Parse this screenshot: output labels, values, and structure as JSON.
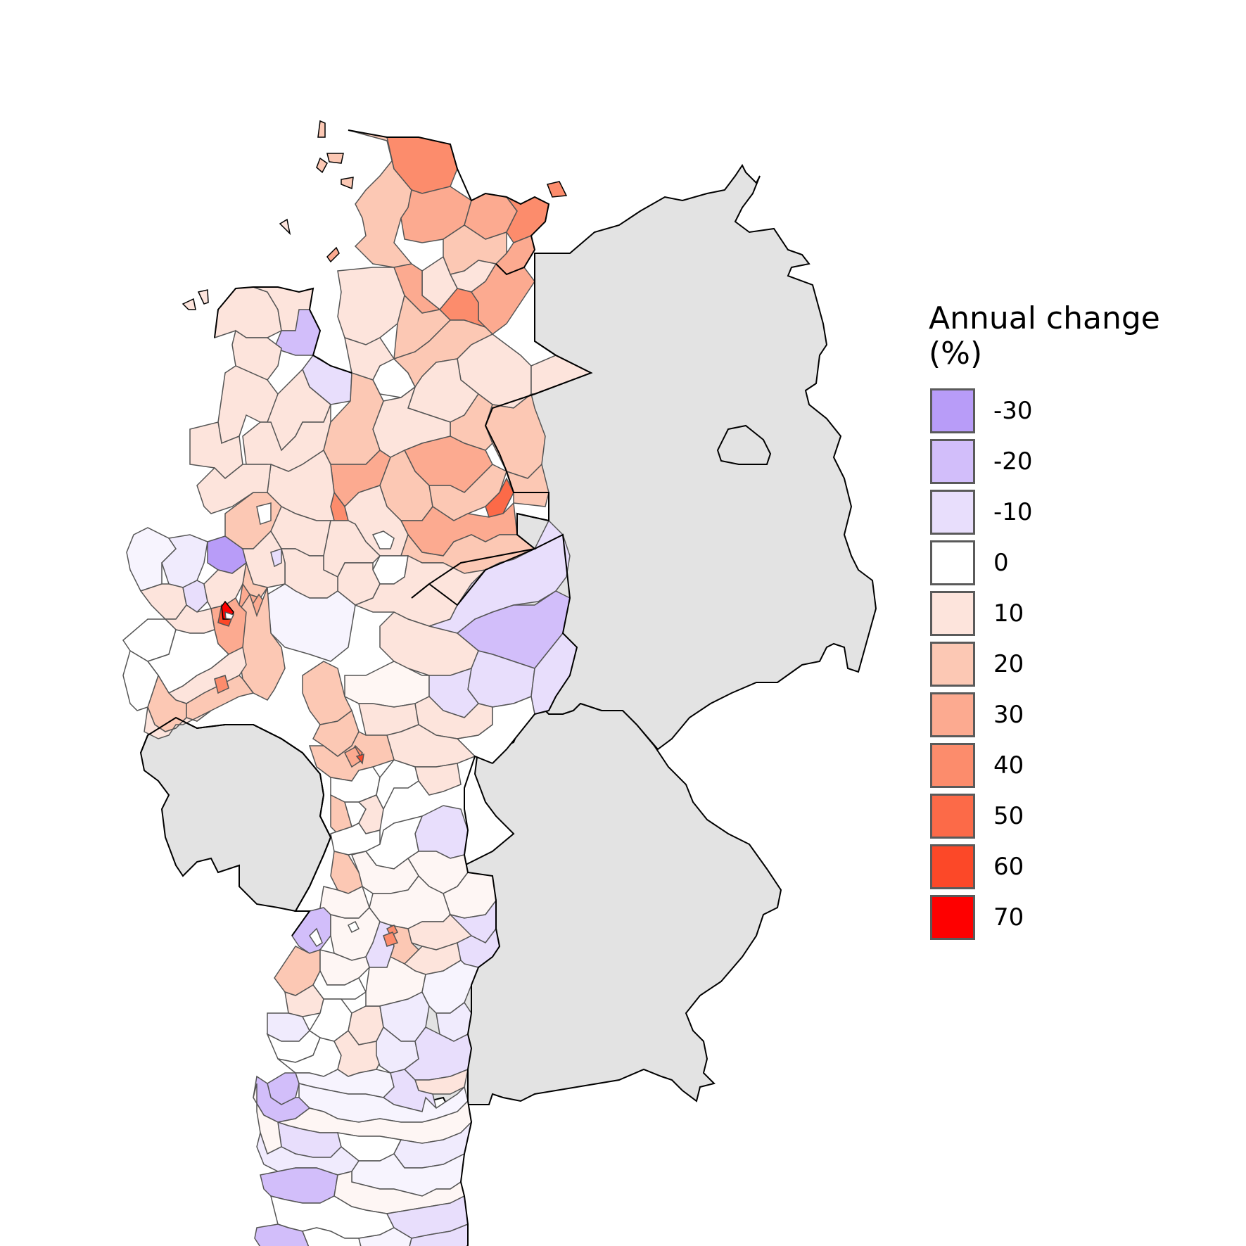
{
  "legend": {
    "title_line1": "Annual change",
    "title_line2": "(%)",
    "items": [
      {
        "label": "-30",
        "color": "#b89cf8"
      },
      {
        "label": "-20",
        "color": "#d2befa"
      },
      {
        "label": "-10",
        "color": "#e8defc"
      },
      {
        "label": "0",
        "color": "#ffffff"
      },
      {
        "label": "10",
        "color": "#fde4dc"
      },
      {
        "label": "20",
        "color": "#fcc8b4"
      },
      {
        "label": "30",
        "color": "#fcaa90"
      },
      {
        "label": "40",
        "color": "#fc8c6c"
      },
      {
        "label": "50",
        "color": "#fc6a48"
      },
      {
        "label": "60",
        "color": "#fc4828"
      },
      {
        "label": "70",
        "color": "#fe0000"
      }
    ]
  },
  "colors": {
    "background_states": "#e3e3e3",
    "border": "#000000",
    "district_border": "#555555"
  }
}
